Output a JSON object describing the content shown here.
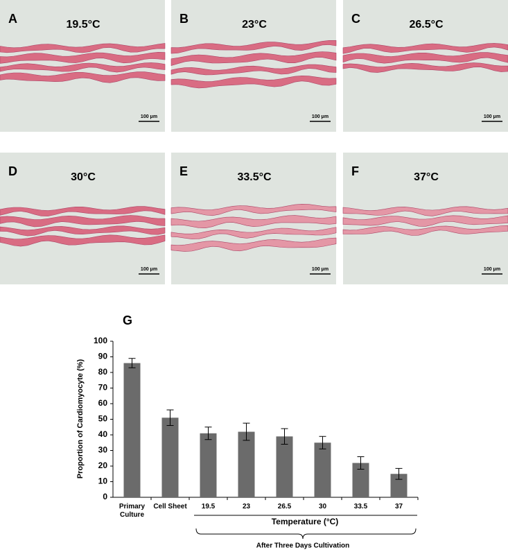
{
  "panels": [
    {
      "letter": "A",
      "label": "19.5°C",
      "scale_bar": "100 μm"
    },
    {
      "letter": "B",
      "label": "23°C",
      "scale_bar": "100 μm"
    },
    {
      "letter": "C",
      "label": "26.5°C",
      "scale_bar": "100 μm"
    },
    {
      "letter": "D",
      "label": "30°C",
      "scale_bar": "100 μm"
    },
    {
      "letter": "E",
      "label": "33.5°C",
      "scale_bar": "100 μm"
    },
    {
      "letter": "F",
      "label": "37°C",
      "scale_bar": "100 μm"
    }
  ],
  "chart_data": {
    "type": "bar",
    "panel_label": "G",
    "categories": [
      "Primary Culture",
      "Cell Sheet",
      "19.5",
      "23",
      "26.5",
      "30",
      "33.5",
      "37"
    ],
    "values": [
      86,
      51,
      41,
      42,
      39,
      35,
      22,
      15
    ],
    "errors": [
      3,
      5,
      4,
      5.5,
      5,
      4,
      4,
      3.5
    ],
    "color": "#6b6b6b",
    "ylabel": "Proportion of Cardiomyocyte (%)",
    "xlabel": "Temperature (°C)",
    "bracket_label": "After Three Days Cultivation",
    "ylim": [
      0,
      100
    ],
    "yticks": [
      0,
      10,
      20,
      30,
      40,
      50,
      60,
      70,
      80,
      90,
      100
    ]
  }
}
